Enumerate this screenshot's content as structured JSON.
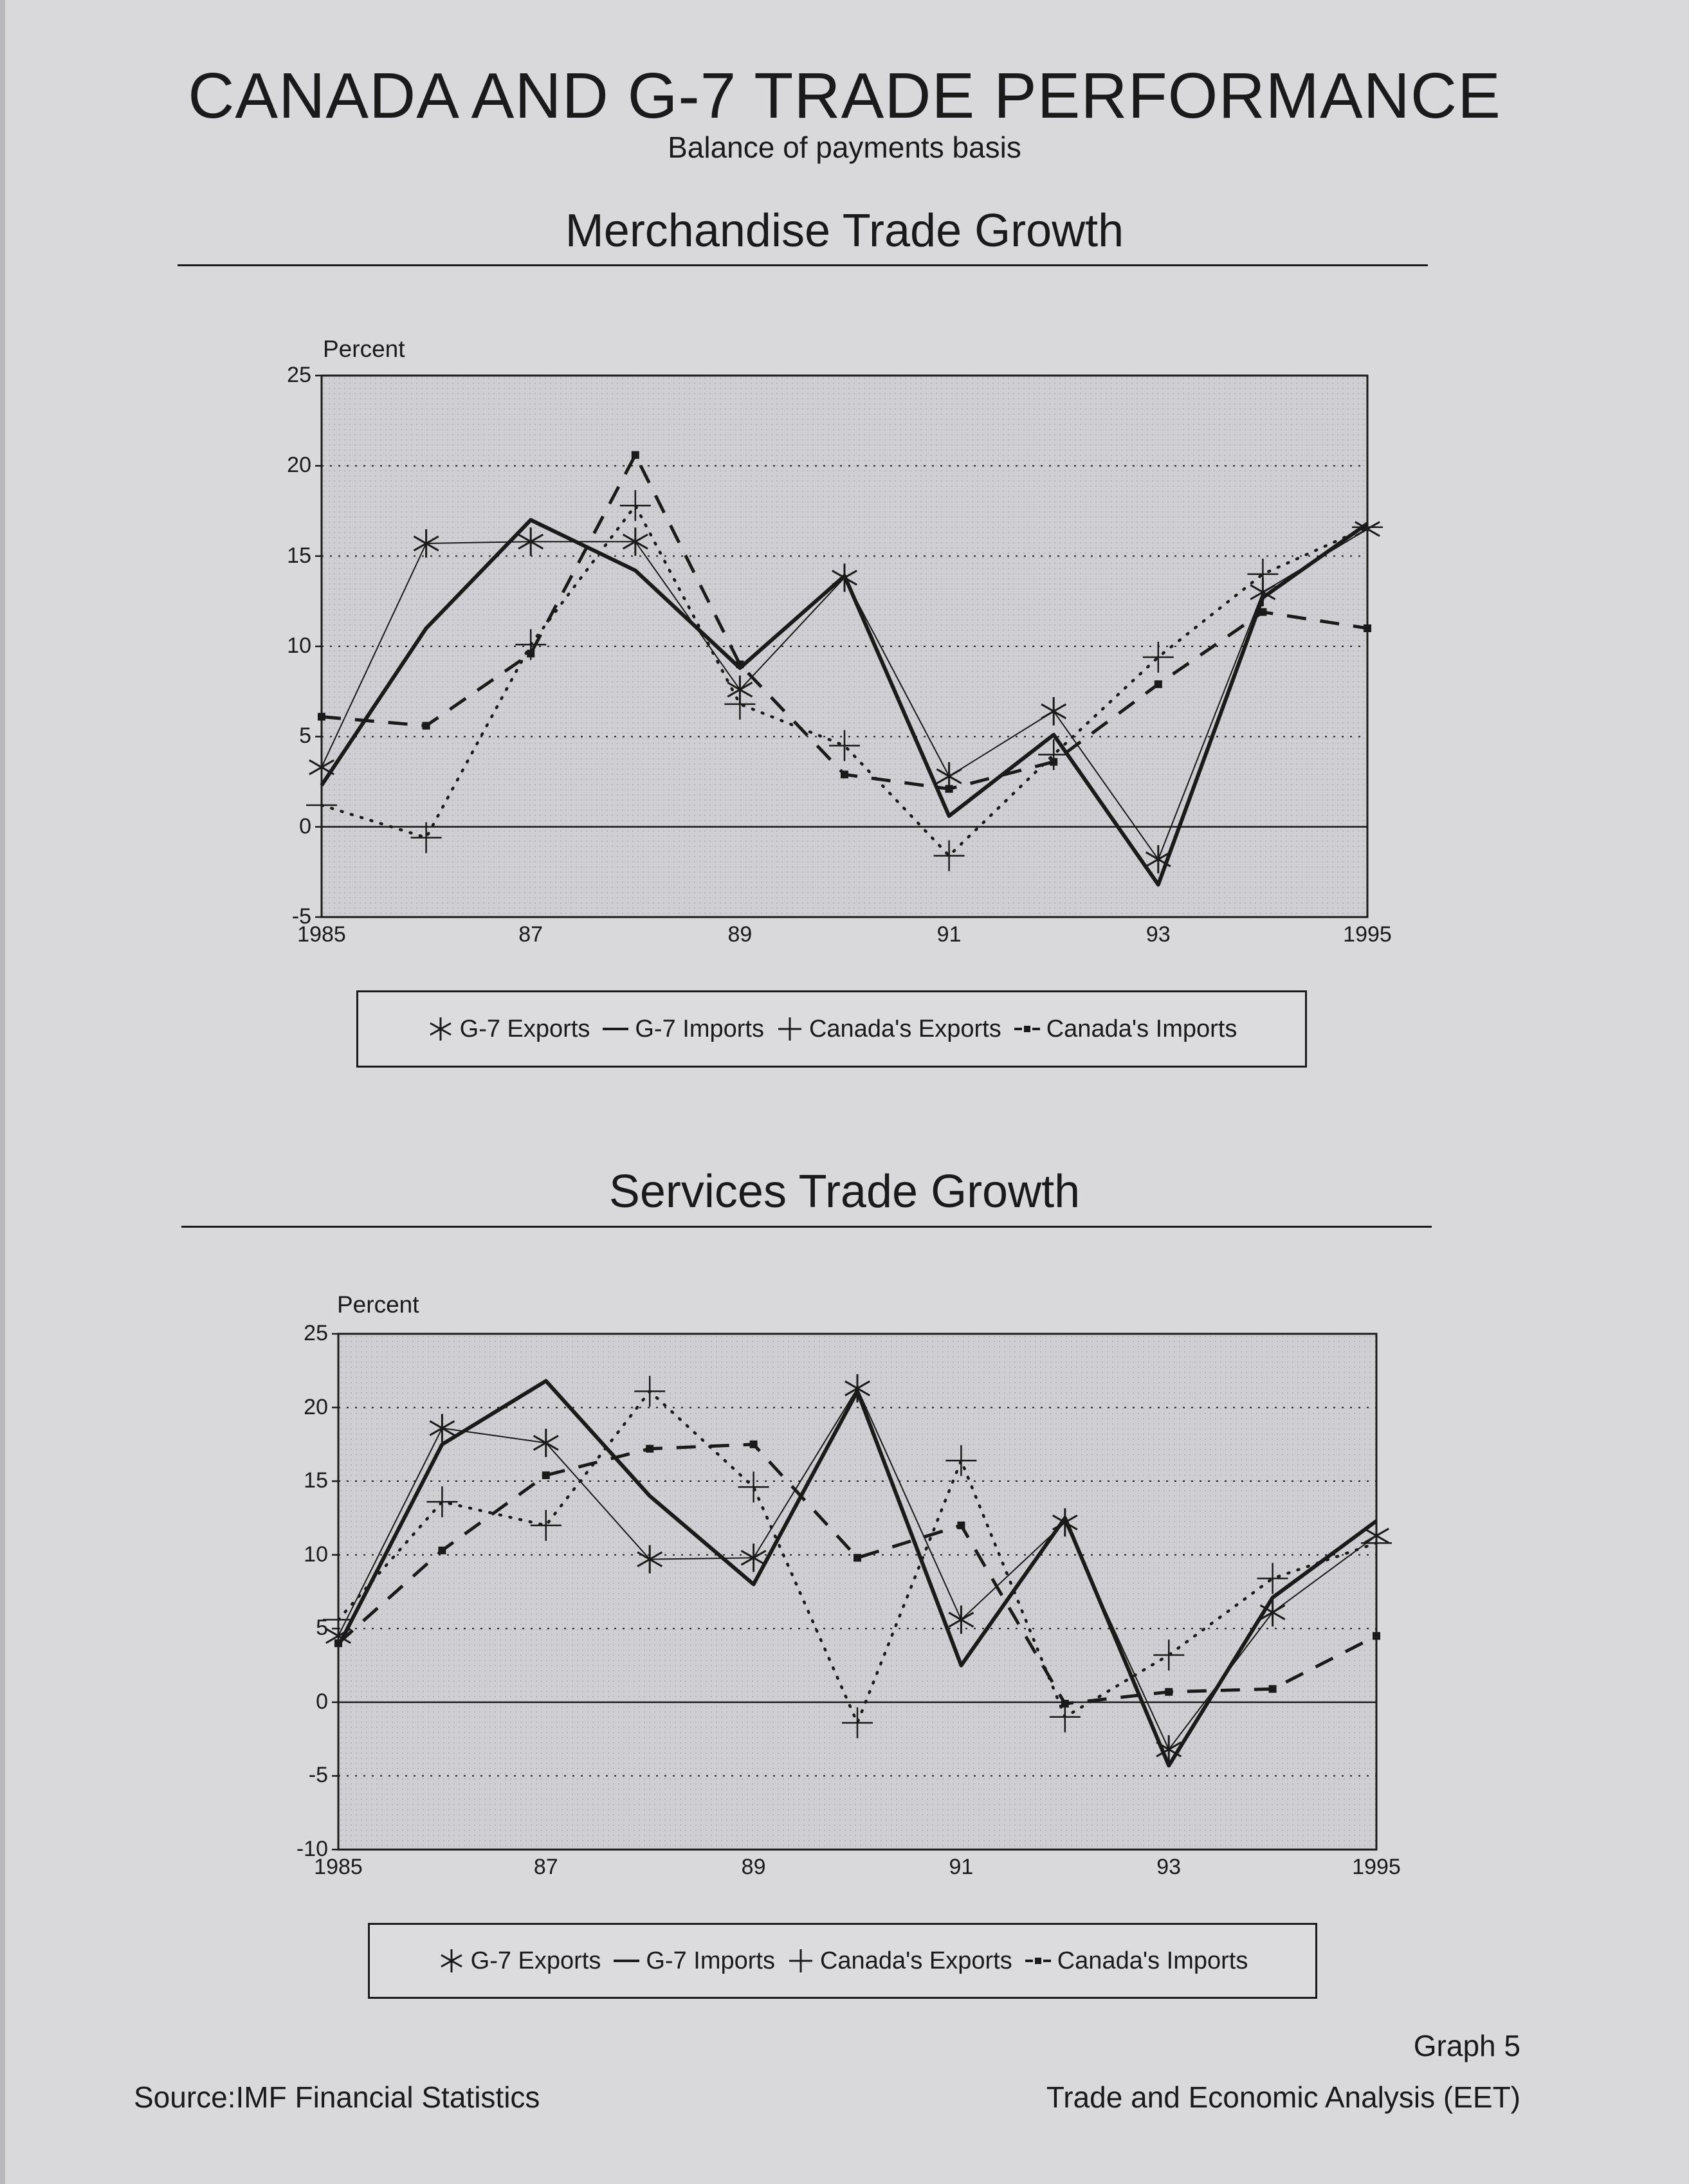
{
  "page": {
    "title": "CANADA AND G-7 TRADE PERFORMANCE",
    "subtitle": "Balance of payments basis",
    "graph_number": "Graph 5",
    "source": "Source:IMF Financial Statistics",
    "credit": "Trade and Economic Analysis (EET)"
  },
  "colors": {
    "background": "#d9d9dc",
    "plot_background": "#cfcfd3",
    "ink": "#1a1a1a"
  },
  "chart_data": [
    {
      "type": "line",
      "title": "Merchandise Trade Growth",
      "ylabel": "Percent",
      "ylim": [
        -5,
        25
      ],
      "yticks": [
        "25",
        "20",
        "15",
        "10",
        "5",
        "0",
        "-5"
      ],
      "x": [
        1985,
        1986,
        1987,
        1988,
        1989,
        1990,
        1991,
        1992,
        1993,
        1994,
        1995
      ],
      "xtick_labels": [
        "1985",
        "87",
        "89",
        "91",
        "93",
        "1995"
      ],
      "grid": "dotted horizontal",
      "legend": "bottom",
      "series": [
        {
          "name": "G-7 Exports",
          "values": [
            3.3,
            15.7,
            15.8,
            15.8,
            7.6,
            13.8,
            2.8,
            6.4,
            -1.8,
            13.0,
            16.5
          ]
        },
        {
          "name": "G-7 Imports",
          "values": [
            2.3,
            11.0,
            17.0,
            14.2,
            8.8,
            13.9,
            0.6,
            5.1,
            -3.2,
            12.7,
            16.8
          ]
        },
        {
          "name": "Canada's Exports",
          "values": [
            1.2,
            -0.6,
            10.1,
            17.8,
            6.8,
            4.5,
            -1.6,
            4.0,
            9.4,
            14.0,
            16.6
          ]
        },
        {
          "name": "Canada's Imports",
          "values": [
            6.1,
            5.6,
            9.6,
            20.6,
            9.0,
            2.9,
            2.1,
            3.6,
            7.9,
            11.9,
            11.0
          ]
        }
      ]
    },
    {
      "type": "line",
      "title": "Services Trade Growth",
      "ylabel": "Percent",
      "ylim": [
        -10,
        25
      ],
      "yticks": [
        "25",
        "20",
        "15",
        "10",
        "5",
        "0",
        "-5",
        "-10"
      ],
      "x": [
        1985,
        1986,
        1987,
        1988,
        1989,
        1990,
        1991,
        1992,
        1993,
        1994,
        1995
      ],
      "xtick_labels": [
        "1985",
        "87",
        "89",
        "91",
        "93",
        "1995"
      ],
      "grid": "dotted horizontal",
      "legend": "bottom",
      "series": [
        {
          "name": "G-7 Exports",
          "values": [
            4.5,
            18.6,
            17.6,
            9.7,
            9.8,
            21.3,
            5.6,
            12.2,
            -3.2,
            6.1,
            11.3
          ]
        },
        {
          "name": "G-7 Imports",
          "values": [
            3.8,
            17.5,
            21.8,
            14.0,
            8.0,
            21.1,
            2.5,
            12.5,
            -4.3,
            7.1,
            12.3
          ]
        },
        {
          "name": "Canada's Exports",
          "values": [
            5.6,
            13.6,
            12.0,
            21.1,
            14.6,
            -1.4,
            16.4,
            -1.0,
            3.2,
            8.4,
            10.8
          ]
        },
        {
          "name": "Canada's Imports",
          "values": [
            4.0,
            10.3,
            15.4,
            17.2,
            17.5,
            9.8,
            12.0,
            -0.1,
            0.7,
            0.9,
            4.5
          ]
        }
      ]
    }
  ]
}
